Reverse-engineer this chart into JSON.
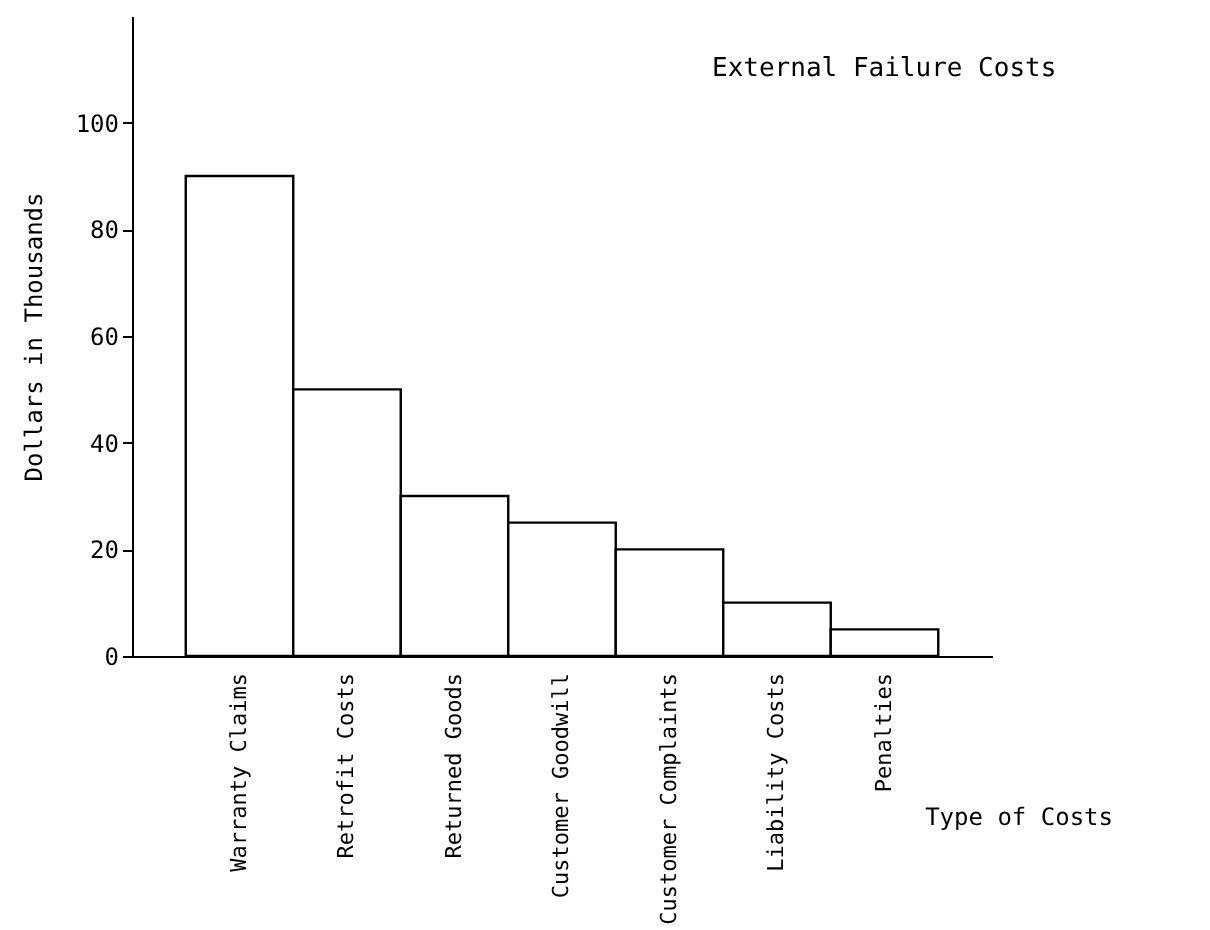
{
  "chart_data": {
    "type": "bar",
    "xlabel": "Type of Costs",
    "ylabel": "Dollars in Thousands",
    "annotations": [
      "External Failure Costs"
    ],
    "categories": [
      "Warranty Claims",
      "Retrofit Costs",
      "Returned Goods",
      "Customer Goodwill",
      "Customer Complaints",
      "Liability Costs",
      "Penalties"
    ],
    "values": [
      90,
      50,
      30,
      25,
      20,
      10,
      5
    ],
    "color": "#ffffff",
    "ylim": [
      0,
      120
    ],
    "yticks": [
      0,
      20,
      40,
      60,
      80,
      100
    ],
    "grid": false
  }
}
